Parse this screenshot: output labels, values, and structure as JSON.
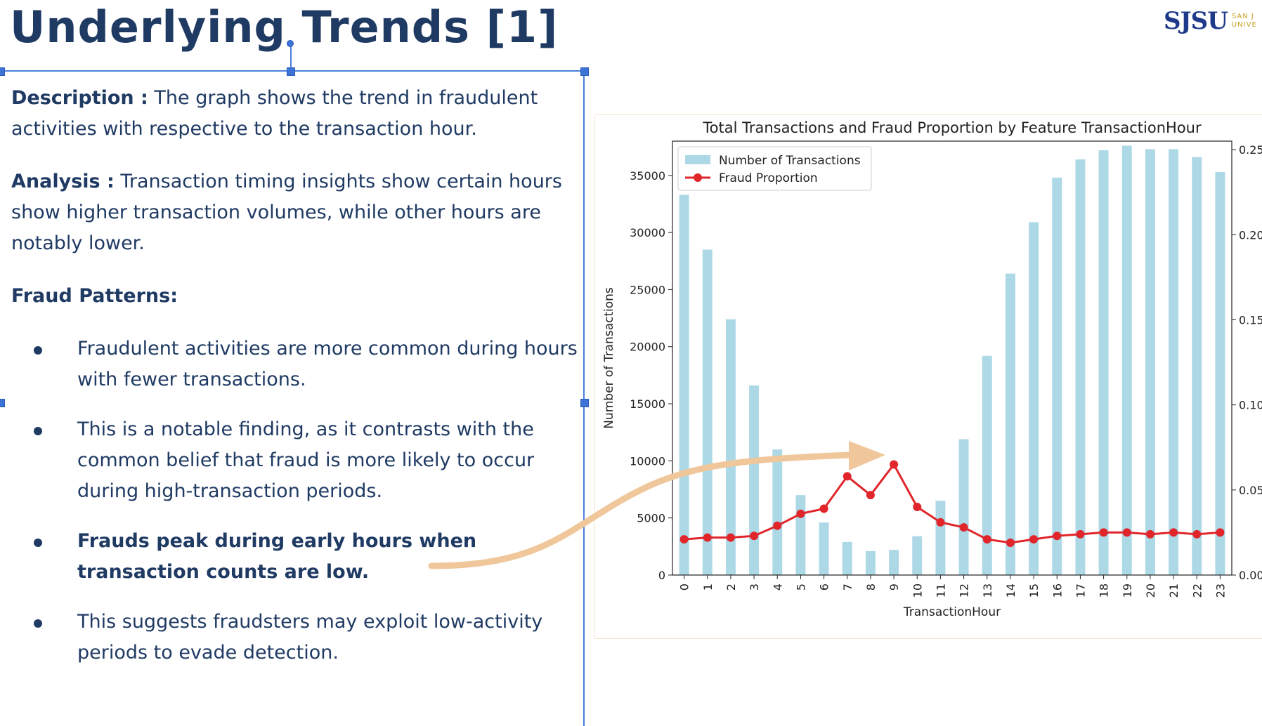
{
  "slide": {
    "title": "Underlying Trends [1]",
    "logo_text": "SJSU",
    "logo_sub_1": "SAN J",
    "logo_sub_2": "UNIVE"
  },
  "text": {
    "description_label": "Description :",
    "description_body": " The graph shows the trend in fraudulent activities with respective to the transaction hour.",
    "analysis_label": "Analysis :",
    "analysis_body": " Transaction timing insights show certain hours show higher transaction volumes, while other hours are notably lower.",
    "fraud_patterns_heading": "Fraud Patterns:",
    "bullets": [
      "Fraudulent activities are more common during hours with fewer transactions.",
      "This is a notable finding, as it contrasts with the common belief that fraud is more likely to occur during high-transaction periods.",
      "Frauds peak during early hours when transaction counts are low.",
      "This suggests fraudsters may exploit low-activity periods to evade detection."
    ]
  },
  "colors": {
    "title": "#1f3a63",
    "bars": "#add8e6",
    "line": "#e0262b",
    "arrow": "#f0c79a",
    "selection": "#4a7fdc"
  },
  "chart_data": {
    "type": "bar",
    "title": "Total Transactions and Fraud Proportion by Feature TransactionHour",
    "xlabel": "TransactionHour",
    "ylabel": "Number of Transactions",
    "categories": [
      "0",
      "1",
      "2",
      "3",
      "4",
      "5",
      "6",
      "7",
      "8",
      "9",
      "10",
      "11",
      "12",
      "13",
      "14",
      "15",
      "16",
      "17",
      "18",
      "19",
      "20",
      "21",
      "22",
      "23"
    ],
    "ylim": [
      0,
      38000
    ],
    "yticks": [
      0,
      5000,
      10000,
      15000,
      20000,
      25000,
      30000,
      35000
    ],
    "y2lim": [
      0,
      0.255
    ],
    "y2ticks": [
      "0.00",
      "0.05",
      "0.10",
      "0.15",
      "0.20",
      "0.25"
    ],
    "legend_position": "top-left",
    "series": [
      {
        "name": "Number of Transactions",
        "type": "bar",
        "axis": "left",
        "values": [
          33300,
          28500,
          22400,
          16600,
          11000,
          7000,
          4600,
          2900,
          2100,
          2200,
          3400,
          6500,
          11900,
          19200,
          26400,
          30900,
          34800,
          36400,
          37200,
          37600,
          37300,
          37300,
          36600,
          35300
        ]
      },
      {
        "name": "Fraud Proportion",
        "type": "line",
        "axis": "right",
        "values": [
          0.021,
          0.022,
          0.022,
          0.023,
          0.029,
          0.036,
          0.039,
          0.058,
          0.047,
          0.065,
          0.04,
          0.031,
          0.028,
          0.021,
          0.019,
          0.021,
          0.023,
          0.024,
          0.025,
          0.025,
          0.024,
          0.025,
          0.024,
          0.025
        ]
      }
    ]
  }
}
